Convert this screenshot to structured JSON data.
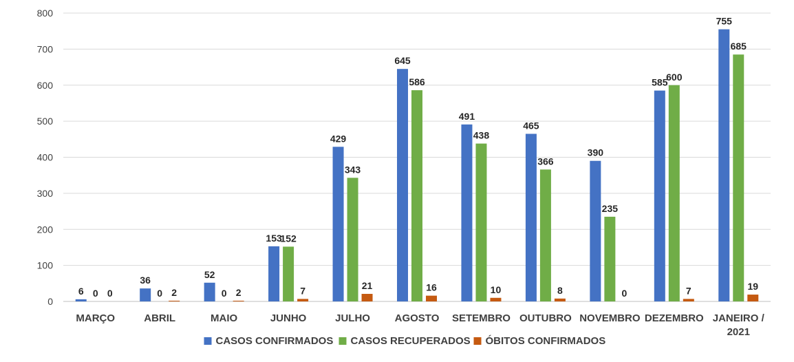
{
  "chart_data": {
    "type": "bar",
    "categories": [
      "MARÇO",
      "ABRIL",
      "MAIO",
      "JUNHO",
      "JULHO",
      "AGOSTO",
      "SETEMBRO",
      "OUTUBRO",
      "NOVEMBRO",
      "DEZEMBRO",
      "JANEIRO / 2021"
    ],
    "series": [
      {
        "name": "CASOS CONFIRMADOS",
        "color": "#4472C4",
        "values": [
          6,
          36,
          52,
          153,
          429,
          645,
          491,
          465,
          390,
          585,
          755
        ]
      },
      {
        "name": "CASOS RECUPERADOS",
        "color": "#70AD47",
        "values": [
          0,
          0,
          0,
          152,
          343,
          586,
          438,
          366,
          235,
          600,
          685
        ]
      },
      {
        "name": "ÓBITOS CONFIRMADOS",
        "color": "#C55A11",
        "values": [
          0,
          2,
          2,
          7,
          21,
          16,
          10,
          8,
          0,
          7,
          19
        ]
      }
    ],
    "ylim": [
      0,
      800
    ],
    "yticks": [
      0,
      100,
      200,
      300,
      400,
      500,
      600,
      700,
      800
    ],
    "grid": true,
    "legend_position": "bottom",
    "data_labels": true
  }
}
